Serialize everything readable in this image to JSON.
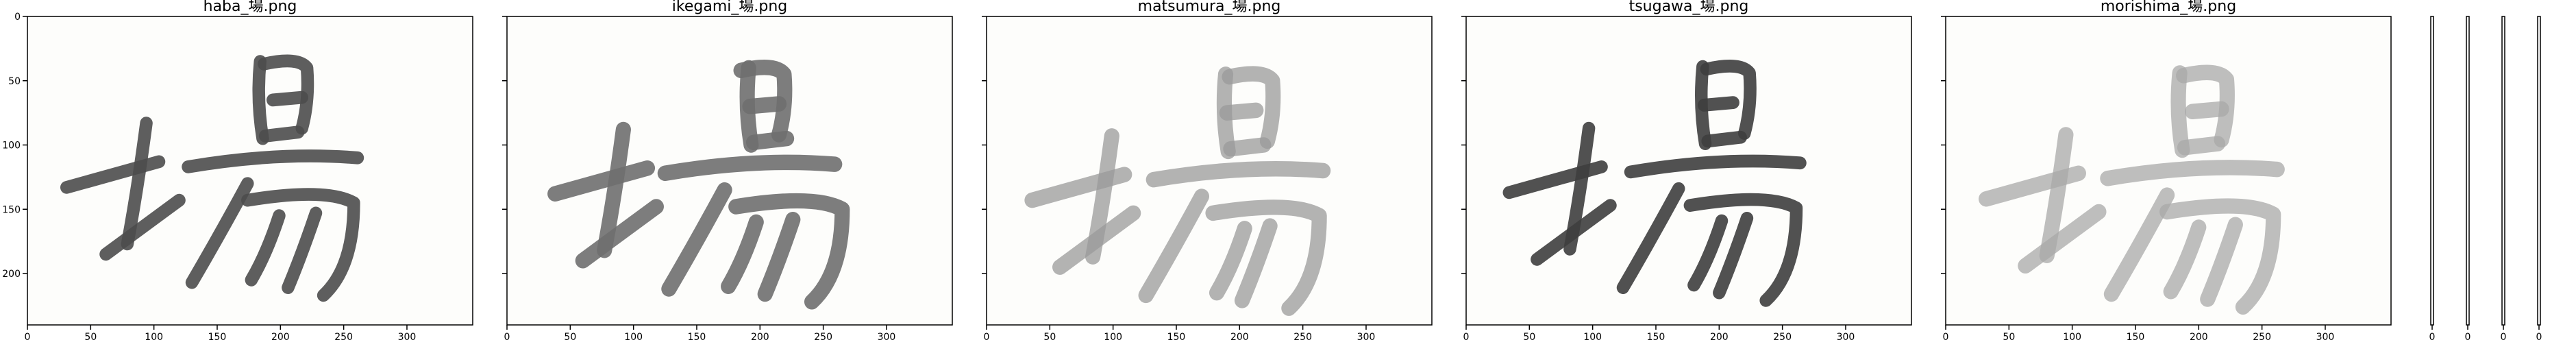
{
  "chart_data": [
    {
      "type": "image",
      "title": "haba_場.png",
      "xticks": [
        "0",
        "50",
        "100",
        "150",
        "200",
        "250",
        "300"
      ],
      "yticks": [
        "0",
        "50",
        "100",
        "150",
        "200"
      ],
      "xlim": [
        0,
        352
      ],
      "ylim": [
        240,
        0
      ],
      "ink": "#4d4d4d"
    },
    {
      "type": "image",
      "title": "ikegami_場.png",
      "xticks": [
        "0",
        "50",
        "100",
        "150",
        "200",
        "250",
        "300"
      ],
      "yticks": [],
      "xlim": [
        0,
        352
      ],
      "ylim": [
        240,
        0
      ],
      "ink": "#6f6f6f"
    },
    {
      "type": "image",
      "title": "matsumura_場.png",
      "xticks": [
        "0",
        "50",
        "100",
        "150",
        "200",
        "250",
        "300"
      ],
      "yticks": [],
      "xlim": [
        0,
        352
      ],
      "ylim": [
        240,
        0
      ],
      "ink": "#9a9a9a"
    },
    {
      "type": "image",
      "title": "tsugawa_場.png",
      "xticks": [
        "0",
        "50",
        "100",
        "150",
        "200",
        "250",
        "300"
      ],
      "yticks": [],
      "xlim": [
        0,
        352
      ],
      "ylim": [
        240,
        0
      ],
      "ink": "#3e3e3e"
    },
    {
      "type": "image",
      "title": "morishima_場.png",
      "xticks": [
        "0",
        "50",
        "100",
        "150",
        "200",
        "250",
        "300"
      ],
      "yticks": [],
      "xlim": [
        0,
        352
      ],
      "ylim": [
        240,
        0
      ],
      "ink": "#a8a8a8"
    }
  ],
  "narrow_panels": {
    "count": 4,
    "tick_label": "0"
  },
  "colors": {
    "axis": "#000000",
    "background": "#ffffff",
    "paper": "#fdfdfb"
  }
}
